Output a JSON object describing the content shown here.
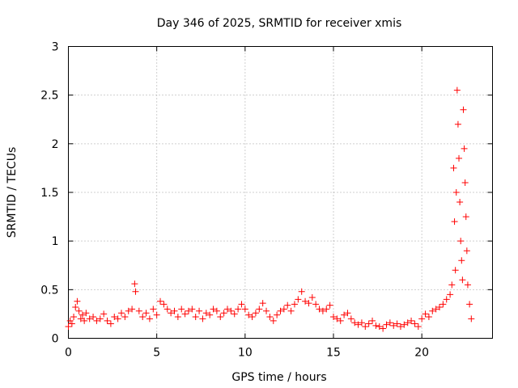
{
  "chart_data": {
    "type": "scatter",
    "title": "Day 346 of 2025, SRMTID for receiver xmis",
    "xlabel": "GPS time / hours",
    "ylabel": "SRMTID / TECUs",
    "xlim": [
      0,
      24
    ],
    "ylim": [
      0,
      3
    ],
    "grid": true,
    "marker": "+",
    "x_ticks": [
      0,
      5,
      10,
      15,
      20
    ],
    "x_tick_labels": [
      "0",
      "5",
      "10",
      "15",
      "20"
    ],
    "y_ticks": [
      0,
      0.5,
      1,
      1.5,
      2,
      2.5,
      3
    ],
    "y_tick_labels": [
      "0",
      "0.5",
      "1",
      "1.5",
      "2",
      "2.5",
      "3"
    ],
    "series": [
      {
        "name": "SRMTID",
        "color": "#ff0000",
        "x": [
          0.0,
          0.1,
          0.2,
          0.3,
          0.4,
          0.5,
          0.6,
          0.7,
          0.8,
          0.9,
          1.0,
          1.2,
          1.4,
          1.6,
          1.8,
          2.0,
          2.2,
          2.4,
          2.6,
          2.8,
          3.0,
          3.2,
          3.4,
          3.6,
          3.75,
          3.8,
          4.0,
          4.2,
          4.4,
          4.6,
          4.8,
          5.0,
          5.2,
          5.4,
          5.6,
          5.8,
          6.0,
          6.2,
          6.4,
          6.6,
          6.8,
          7.0,
          7.2,
          7.4,
          7.6,
          7.8,
          8.0,
          8.2,
          8.4,
          8.6,
          8.8,
          9.0,
          9.2,
          9.4,
          9.6,
          9.8,
          10.0,
          10.2,
          10.4,
          10.6,
          10.8,
          11.0,
          11.2,
          11.4,
          11.6,
          11.8,
          12.0,
          12.2,
          12.4,
          12.6,
          12.8,
          13.0,
          13.2,
          13.4,
          13.6,
          13.8,
          14.0,
          14.2,
          14.4,
          14.6,
          14.8,
          15.0,
          15.2,
          15.4,
          15.6,
          15.8,
          16.0,
          16.2,
          16.4,
          16.6,
          16.8,
          17.0,
          17.2,
          17.4,
          17.6,
          17.8,
          18.0,
          18.2,
          18.4,
          18.6,
          18.8,
          19.0,
          19.2,
          19.4,
          19.6,
          19.8,
          20.0,
          20.2,
          20.4,
          20.6,
          20.8,
          21.0,
          21.2,
          21.4,
          21.6,
          21.7,
          21.8,
          21.85,
          21.9,
          21.95,
          22.0,
          22.05,
          22.1,
          22.15,
          22.2,
          22.25,
          22.3,
          22.35,
          22.4,
          22.45,
          22.5,
          22.55,
          22.6,
          22.7,
          22.8
        ],
        "y": [
          0.12,
          0.18,
          0.15,
          0.22,
          0.32,
          0.38,
          0.28,
          0.2,
          0.24,
          0.18,
          0.26,
          0.2,
          0.22,
          0.18,
          0.2,
          0.25,
          0.18,
          0.15,
          0.22,
          0.2,
          0.26,
          0.22,
          0.28,
          0.3,
          0.56,
          0.48,
          0.28,
          0.22,
          0.26,
          0.2,
          0.3,
          0.24,
          0.38,
          0.35,
          0.3,
          0.26,
          0.28,
          0.22,
          0.3,
          0.25,
          0.28,
          0.3,
          0.22,
          0.28,
          0.2,
          0.26,
          0.24,
          0.3,
          0.28,
          0.22,
          0.26,
          0.3,
          0.28,
          0.25,
          0.3,
          0.35,
          0.3,
          0.24,
          0.22,
          0.26,
          0.3,
          0.36,
          0.28,
          0.22,
          0.18,
          0.24,
          0.28,
          0.3,
          0.34,
          0.28,
          0.35,
          0.4,
          0.48,
          0.38,
          0.36,
          0.42,
          0.35,
          0.3,
          0.28,
          0.3,
          0.34,
          0.22,
          0.2,
          0.18,
          0.24,
          0.26,
          0.2,
          0.16,
          0.14,
          0.16,
          0.12,
          0.15,
          0.18,
          0.13,
          0.12,
          0.1,
          0.14,
          0.16,
          0.13,
          0.15,
          0.12,
          0.14,
          0.16,
          0.18,
          0.15,
          0.12,
          0.2,
          0.25,
          0.22,
          0.28,
          0.3,
          0.32,
          0.35,
          0.4,
          0.45,
          0.55,
          1.75,
          1.2,
          0.7,
          1.5,
          2.55,
          2.2,
          1.85,
          1.4,
          1.0,
          0.8,
          0.6,
          2.35,
          1.95,
          1.6,
          1.25,
          0.9,
          0.55,
          0.35,
          0.2
        ]
      }
    ]
  }
}
